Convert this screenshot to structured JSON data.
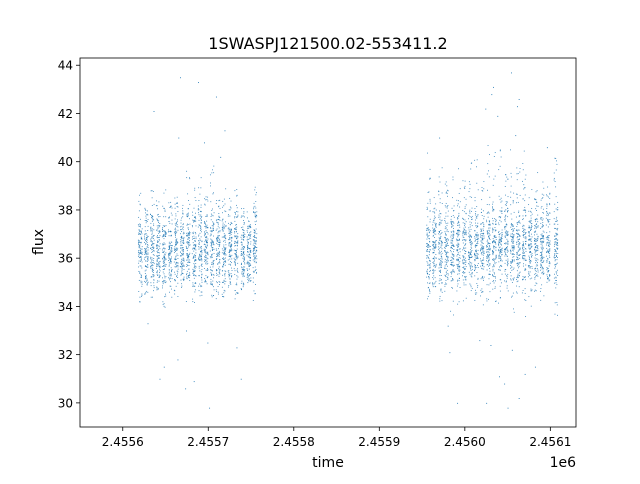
{
  "chart_data": {
    "type": "scatter",
    "title": "1SWASPJ121500.02-553411.2",
    "xlabel": "time",
    "ylabel": "flux",
    "x_offset_label": "1e6",
    "xlim": [
      2.45555,
      2.45613
    ],
    "ylim": [
      29.0,
      44.3
    ],
    "x_ticks": [
      2.4556,
      2.4557,
      2.4558,
      2.4559,
      2.456,
      2.4561
    ],
    "x_tick_labels": [
      "2.4556",
      "2.4557",
      "2.4558",
      "2.4559",
      "2.4560",
      "2.4561"
    ],
    "y_ticks": [
      30,
      32,
      34,
      36,
      38,
      40,
      42,
      44
    ],
    "y_tick_labels": [
      "30",
      "32",
      "34",
      "36",
      "38",
      "40",
      "42",
      "44"
    ],
    "grid": false,
    "series": [
      {
        "color": "#1f77b4",
        "segments": [
          {
            "x_start": 2.455615,
            "x_end": 2.455755,
            "typical_low": 34.0,
            "typical_high": 39.0,
            "center": 36.4,
            "nights": [
              {
                "x": 2.45562,
                "low": 34.2,
                "high": 38.8
              },
              {
                "x": 2.455627,
                "low": 34.5,
                "high": 38.2
              },
              {
                "x": 2.455634,
                "low": 34.0,
                "high": 38.9
              },
              {
                "x": 2.455641,
                "low": 34.6,
                "high": 38.4
              },
              {
                "x": 2.455648,
                "low": 33.9,
                "high": 38.9
              },
              {
                "x": 2.455655,
                "low": 34.3,
                "high": 38.5
              },
              {
                "x": 2.455662,
                "low": 34.4,
                "high": 38.7
              },
              {
                "x": 2.455669,
                "low": 34.8,
                "high": 38.3
              },
              {
                "x": 2.455676,
                "low": 34.0,
                "high": 39.8
              },
              {
                "x": 2.455683,
                "low": 34.1,
                "high": 39.2
              },
              {
                "x": 2.45569,
                "low": 34.3,
                "high": 39.6
              },
              {
                "x": 2.455697,
                "low": 34.5,
                "high": 38.6
              },
              {
                "x": 2.455704,
                "low": 34.0,
                "high": 39.9
              },
              {
                "x": 2.455711,
                "low": 34.2,
                "high": 38.8
              },
              {
                "x": 2.455718,
                "low": 34.4,
                "high": 39.0
              },
              {
                "x": 2.455725,
                "low": 34.1,
                "high": 38.7
              },
              {
                "x": 2.455732,
                "low": 34.3,
                "high": 38.9
              },
              {
                "x": 2.45574,
                "low": 34.6,
                "high": 38.2
              },
              {
                "x": 2.455747,
                "low": 35.0,
                "high": 38.0
              },
              {
                "x": 2.455754,
                "low": 33.8,
                "high": 39.2
              }
            ],
            "outliers": [
              [
                2.455636,
                42.1
              ],
              [
                2.455667,
                43.5
              ],
              [
                2.455688,
                43.3
              ],
              [
                2.455709,
                42.7
              ],
              [
                2.455695,
                40.8
              ],
              [
                2.455714,
                40.2
              ],
              [
                2.455665,
                41.0
              ],
              [
                2.455643,
                31.0
              ],
              [
                2.455648,
                31.5
              ],
              [
                2.455673,
                30.6
              ],
              [
                2.455683,
                30.9
              ],
              [
                2.455701,
                29.8
              ],
              [
                2.455738,
                31.0
              ],
              [
                2.455733,
                32.3
              ],
              [
                2.455699,
                32.5
              ],
              [
                2.455674,
                33.0
              ],
              [
                2.455629,
                33.3
              ],
              [
                2.455664,
                31.8
              ],
              [
                2.455719,
                41.3
              ]
            ]
          },
          {
            "x_start": 2.455953,
            "x_end": 2.456108,
            "typical_low": 34.0,
            "typical_high": 40.0,
            "center": 36.5,
            "nights": [
              {
                "x": 2.455957,
                "low": 34.3,
                "high": 40.4
              },
              {
                "x": 2.455964,
                "low": 34.8,
                "high": 38.9
              },
              {
                "x": 2.455971,
                "low": 34.2,
                "high": 40.3
              },
              {
                "x": 2.455978,
                "low": 34.6,
                "high": 39.3
              },
              {
                "x": 2.455985,
                "low": 33.6,
                "high": 40.2
              },
              {
                "x": 2.455992,
                "low": 33.9,
                "high": 40.0
              },
              {
                "x": 2.455999,
                "low": 34.1,
                "high": 39.6
              },
              {
                "x": 2.456006,
                "low": 34.4,
                "high": 40.1
              },
              {
                "x": 2.456013,
                "low": 33.8,
                "high": 40.3
              },
              {
                "x": 2.45602,
                "low": 34.0,
                "high": 39.8
              },
              {
                "x": 2.456027,
                "low": 33.7,
                "high": 40.7
              },
              {
                "x": 2.456034,
                "low": 34.2,
                "high": 40.5
              },
              {
                "x": 2.456041,
                "low": 33.9,
                "high": 40.6
              },
              {
                "x": 2.456048,
                "low": 34.5,
                "high": 39.5
              },
              {
                "x": 2.456055,
                "low": 33.5,
                "high": 40.6
              },
              {
                "x": 2.456062,
                "low": 34.1,
                "high": 40.4
              },
              {
                "x": 2.456069,
                "low": 33.3,
                "high": 40.7
              },
              {
                "x": 2.456076,
                "low": 34.0,
                "high": 40.1
              },
              {
                "x": 2.456083,
                "low": 34.6,
                "high": 39.6
              },
              {
                "x": 2.45609,
                "low": 34.2,
                "high": 39.4
              },
              {
                "x": 2.456097,
                "low": 34.9,
                "high": 39.0
              },
              {
                "x": 2.456106,
                "low": 33.6,
                "high": 40.2
              }
            ],
            "outliers": [
              [
                2.456024,
                42.2
              ],
              [
                2.456031,
                42.8
              ],
              [
                2.456033,
                43.1
              ],
              [
                2.456054,
                43.7
              ],
              [
                2.456063,
                42.6
              ],
              [
                2.456061,
                42.3
              ],
              [
                2.456038,
                41.9
              ],
              [
                2.456059,
                41.1
              ],
              [
                2.455991,
                30.0
              ],
              [
                2.456025,
                30.0
              ],
              [
                2.456046,
                30.8
              ],
              [
                2.456063,
                30.2
              ],
              [
                2.45605,
                29.8
              ],
              [
                2.45604,
                31.1
              ],
              [
                2.456055,
                32.2
              ],
              [
                2.456017,
                32.6
              ],
              [
                2.45603,
                32.4
              ],
              [
                2.455982,
                32.1
              ],
              [
                2.45598,
                33.2
              ],
              [
                2.456082,
                31.5
              ],
              [
                2.45607,
                31.2
              ],
              [
                2.45597,
                41.0
              ],
              [
                2.456096,
                40.6
              ]
            ]
          }
        ]
      }
    ]
  }
}
